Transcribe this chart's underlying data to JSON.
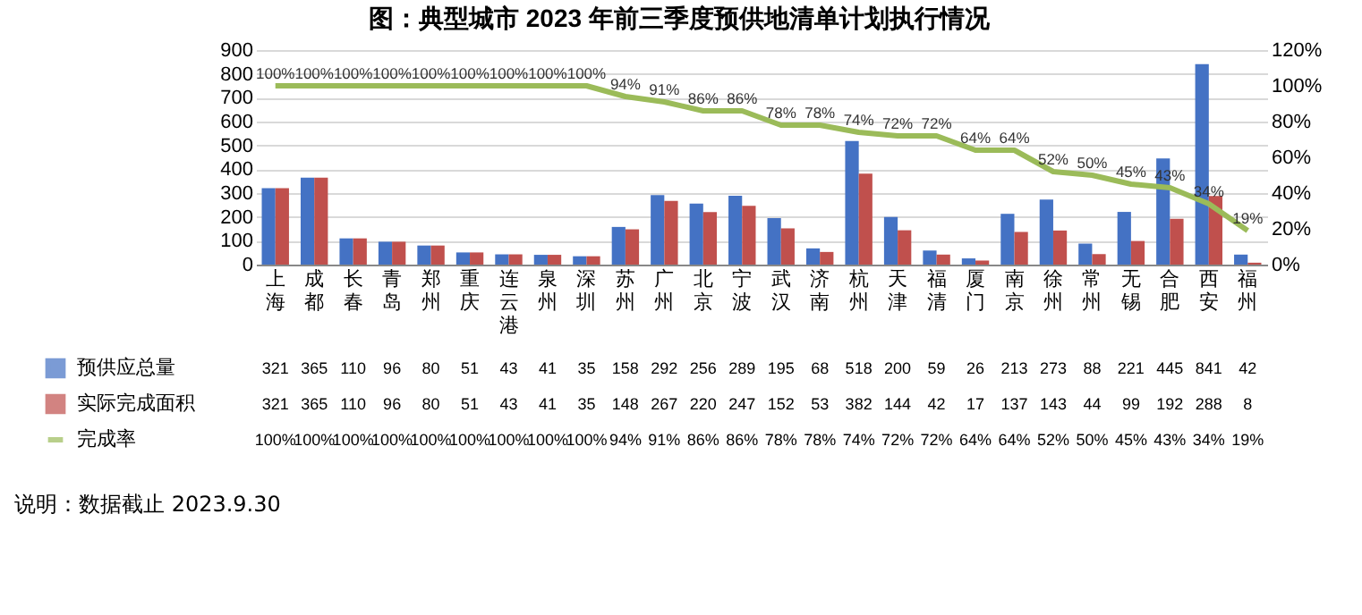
{
  "chart_data": {
    "type": "bar",
    "title": "图：典型城市 2023 年前三季度预供地清单计划执行情况",
    "categories": [
      "上海",
      "成都",
      "长春",
      "青岛",
      "郑州",
      "重庆",
      "连云港",
      "泉州",
      "深圳",
      "苏州",
      "广州",
      "北京",
      "宁波",
      "武汉",
      "济南",
      "杭州",
      "天津",
      "福清",
      "厦门",
      "南京",
      "徐州",
      "常州",
      "无锡",
      "合肥",
      "西安",
      "福州"
    ],
    "series": [
      {
        "name": "预供应总量",
        "color": "#4472c4",
        "values": [
          321,
          365,
          110,
          96,
          80,
          51,
          43,
          41,
          35,
          158,
          292,
          256,
          289,
          195,
          68,
          518,
          200,
          59,
          26,
          213,
          273,
          88,
          221,
          445,
          841,
          42
        ]
      },
      {
        "name": "实际完成面积",
        "color": "#c0504d",
        "values": [
          321,
          365,
          110,
          96,
          80,
          51,
          43,
          41,
          35,
          148,
          267,
          220,
          247,
          152,
          53,
          382,
          144,
          42,
          17,
          137,
          143,
          44,
          99,
          192,
          288,
          8
        ]
      },
      {
        "name": "完成率",
        "type": "line",
        "axis": "y2",
        "color": "#9bbb59",
        "values": [
          100,
          100,
          100,
          100,
          100,
          100,
          100,
          100,
          100,
          94,
          91,
          86,
          86,
          78,
          78,
          74,
          72,
          72,
          64,
          64,
          52,
          50,
          45,
          43,
          34,
          19
        ],
        "value_labels": [
          "100%",
          "100%",
          "100%",
          "100%",
          "100%",
          "100%",
          "100%",
          "100%",
          "100%",
          "94%",
          "91%",
          "86%",
          "86%",
          "78%",
          "78%",
          "74%",
          "72%",
          "72%",
          "64%",
          "64%",
          "52%",
          "50%",
          "45%",
          "43%",
          "34%",
          "19%"
        ]
      }
    ],
    "ylim": [
      0,
      900
    ],
    "yticks": [
      0,
      100,
      200,
      300,
      400,
      500,
      600,
      700,
      800,
      900
    ],
    "y2lim": [
      0,
      120
    ],
    "y2ticks": [
      {
        "value": 0,
        "label": "0%"
      },
      {
        "value": 20,
        "label": "20%"
      },
      {
        "value": 40,
        "label": "40%"
      },
      {
        "value": 60,
        "label": "60%"
      },
      {
        "value": 80,
        "label": "80%"
      },
      {
        "value": 100,
        "label": "100%"
      },
      {
        "value": 120,
        "label": "120%"
      }
    ],
    "grid": "y",
    "legend": "bottom",
    "data_labels": true,
    "annotations": [
      "说明：数据截止 2023.9.30"
    ]
  }
}
